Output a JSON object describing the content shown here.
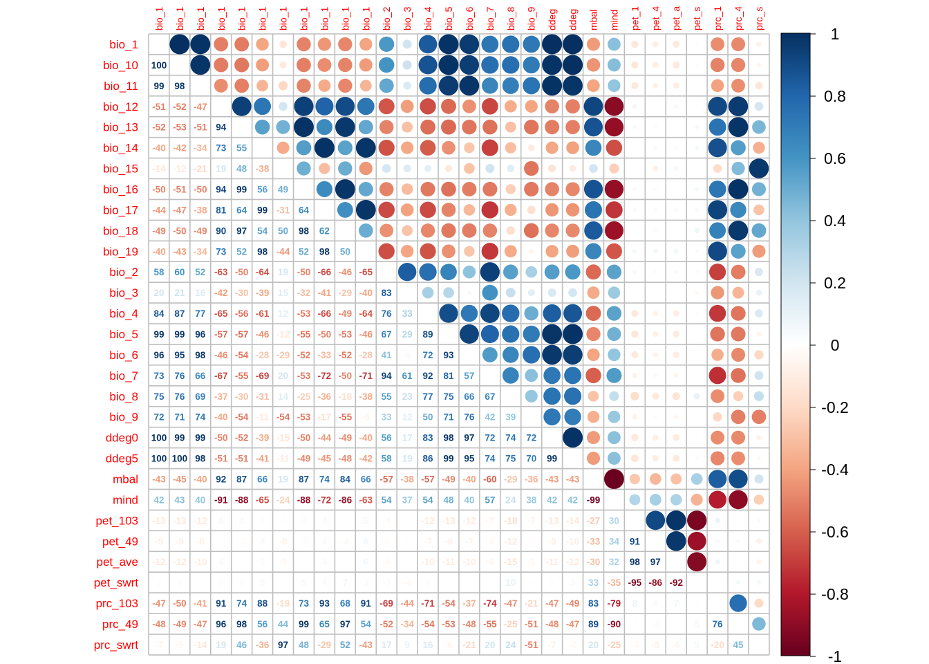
{
  "chart_data": {
    "type": "heatmap",
    "title": "",
    "variables": [
      "bio_1",
      "bio_10",
      "bio_11",
      "bio_12",
      "bio_13",
      "bio_14",
      "bio_15",
      "bio_16",
      "bio_17",
      "bio_18",
      "bio_19",
      "bio_2",
      "bio_3",
      "bio_4",
      "bio_5",
      "bio_6",
      "bio_7",
      "bio_8",
      "bio_9",
      "ddeg0",
      "ddeg5",
      "mbal",
      "mind",
      "pet_103",
      "pet_49",
      "pet_ave",
      "pet_swrt",
      "prc_103",
      "prc_49",
      "prc_swrt"
    ],
    "column_tick_labels": [
      "bio_1",
      "bio_1",
      "bio_1",
      "bio_1",
      "bio_1",
      "bio_1",
      "bio_1",
      "bio_1",
      "bio_1",
      "bio_1",
      "bio_1",
      "bio_2",
      "bio_3",
      "bio_4",
      "bio_5",
      "bio_6",
      "bio_7",
      "bio_8",
      "bio_9",
      "ddeg",
      "ddeg",
      "mbal",
      "mind",
      "pet_1",
      "pet_4",
      "pet_a",
      "pet_s",
      "prc_1",
      "prc_4",
      "prc_s"
    ],
    "lower_triangle_percent": [
      [],
      [
        100
      ],
      [
        99,
        98
      ],
      [
        -51,
        -52,
        -47
      ],
      [
        -52,
        -53,
        -51,
        94
      ],
      [
        -40,
        -42,
        -34,
        73,
        55
      ],
      [
        -14,
        -12,
        -21,
        19,
        48,
        -38
      ],
      [
        -50,
        -51,
        -50,
        94,
        99,
        56,
        49
      ],
      [
        -44,
        -47,
        -38,
        81,
        64,
        99,
        -31,
        64
      ],
      [
        -49,
        -50,
        -49,
        90,
        97,
        54,
        50,
        98,
        62
      ],
      [
        -40,
        -43,
        -34,
        73,
        52,
        98,
        -44,
        52,
        98,
        50
      ],
      [
        58,
        60,
        52,
        -63,
        -50,
        -64,
        19,
        -50,
        -66,
        -46,
        -65
      ],
      [
        20,
        21,
        16,
        -42,
        -30,
        -39,
        15,
        -32,
        -41,
        -29,
        -40,
        83
      ],
      [
        84,
        87,
        77,
        -65,
        -56,
        -61,
        12,
        -53,
        -66,
        -49,
        -64,
        76,
        33
      ],
      [
        99,
        99,
        96,
        -57,
        -57,
        -46,
        -12,
        -55,
        -50,
        -53,
        -46,
        67,
        29,
        89
      ],
      [
        96,
        95,
        98,
        -46,
        -54,
        -28,
        -29,
        -52,
        -33,
        -52,
        -28,
        41,
        4,
        72,
        93
      ],
      [
        73,
        76,
        66,
        -67,
        -55,
        -69,
        20,
        -53,
        -72,
        -50,
        -71,
        94,
        61,
        92,
        81,
        57
      ],
      [
        75,
        76,
        69,
        -37,
        -30,
        -31,
        14,
        -25,
        -36,
        -18,
        -38,
        55,
        23,
        77,
        75,
        66,
        67
      ],
      [
        72,
        71,
        74,
        -40,
        -54,
        -11,
        -54,
        -53,
        -17,
        -55,
        -6,
        33,
        12,
        50,
        71,
        76,
        42,
        39
      ],
      [
        100,
        99,
        99,
        -50,
        -52,
        -39,
        -15,
        -50,
        -44,
        -49,
        -40,
        56,
        17,
        83,
        98,
        97,
        72,
        74,
        72
      ],
      [
        100,
        100,
        98,
        -51,
        -51,
        -41,
        -11,
        -49,
        -45,
        -48,
        -42,
        58,
        19,
        86,
        99,
        95,
        74,
        75,
        70,
        99
      ],
      [
        -43,
        -45,
        -40,
        92,
        87,
        66,
        19,
        87,
        74,
        84,
        66,
        -57,
        -38,
        -57,
        -49,
        -40,
        -60,
        -29,
        -36,
        -43,
        -43
      ],
      [
        42,
        43,
        40,
        -91,
        -88,
        -65,
        -24,
        -88,
        -72,
        -86,
        -63,
        54,
        37,
        54,
        48,
        40,
        57,
        24,
        38,
        42,
        42,
        -99
      ],
      [
        -13,
        -13,
        -12,
        6,
        4,
        2,
        -1,
        3,
        4,
        1,
        5,
        -4,
        1,
        -12,
        -13,
        -12,
        -7,
        -18,
        -7,
        -13,
        -14,
        -27,
        30
      ],
      [
        -9,
        -9,
        -8,
        1,
        -3,
        4,
        -8,
        -3,
        4,
        -4,
        6,
        -3,
        1,
        -7,
        -8,
        -7,
        -4,
        -12,
        -3,
        -9,
        -10,
        -33,
        34,
        91
      ],
      [
        -12,
        -12,
        -10,
        4,
        1,
        3,
        -5,
        1,
        4,
        0,
        6,
        -4,
        1,
        -10,
        -11,
        -10,
        -6,
        -15,
        -5,
        -11,
        -12,
        -30,
        32,
        98,
        97
      ],
      [
        2,
        2,
        1,
        2,
        4,
        5,
        1,
        5,
        4,
        7,
        3,
        -3,
        -4,
        2,
        1,
        1,
        0,
        10,
        -1,
        2,
        3,
        33,
        -35,
        -95,
        -86,
        -92
      ],
      [
        -47,
        -50,
        -41,
        91,
        74,
        88,
        -19,
        73,
        93,
        68,
        91,
        -69,
        -44,
        -71,
        -54,
        -37,
        -74,
        -47,
        -21,
        -47,
        -49,
        83,
        -79,
        8,
        4,
        7,
        1
      ],
      [
        -48,
        -49,
        -47,
        96,
        98,
        56,
        44,
        99,
        65,
        97,
        54,
        -52,
        -34,
        -54,
        -53,
        -48,
        -55,
        -25,
        -51,
        -48,
        -47,
        89,
        -90,
        -1,
        -3,
        -1,
        5,
        76
      ],
      [
        -7,
        -5,
        -14,
        19,
        46,
        -36,
        97,
        48,
        -29,
        52,
        -43,
        17,
        9,
        16,
        -6,
        -21,
        20,
        24,
        -51,
        -7,
        -4,
        20,
        -25,
        -4,
        -8,
        -6,
        5,
        -20,
        45
      ]
    ],
    "colorbar": {
      "ticks": [
        "1",
        "0.8",
        "0.6",
        "0.4",
        "0.2",
        "0",
        "-0.2",
        "-0.4",
        "-0.6",
        "-0.8",
        "-1"
      ],
      "range": [
        -1,
        1
      ],
      "palette": [
        "#67001f",
        "#b2182b",
        "#d6604d",
        "#f4a582",
        "#fddbc7",
        "#ffffff",
        "#d1e5f0",
        "#92c5de",
        "#4393c3",
        "#2166ac",
        "#053061"
      ]
    },
    "upper_triangle": "circles",
    "lower_triangle": "numbers",
    "diagonal": "empty",
    "grid": true
  }
}
